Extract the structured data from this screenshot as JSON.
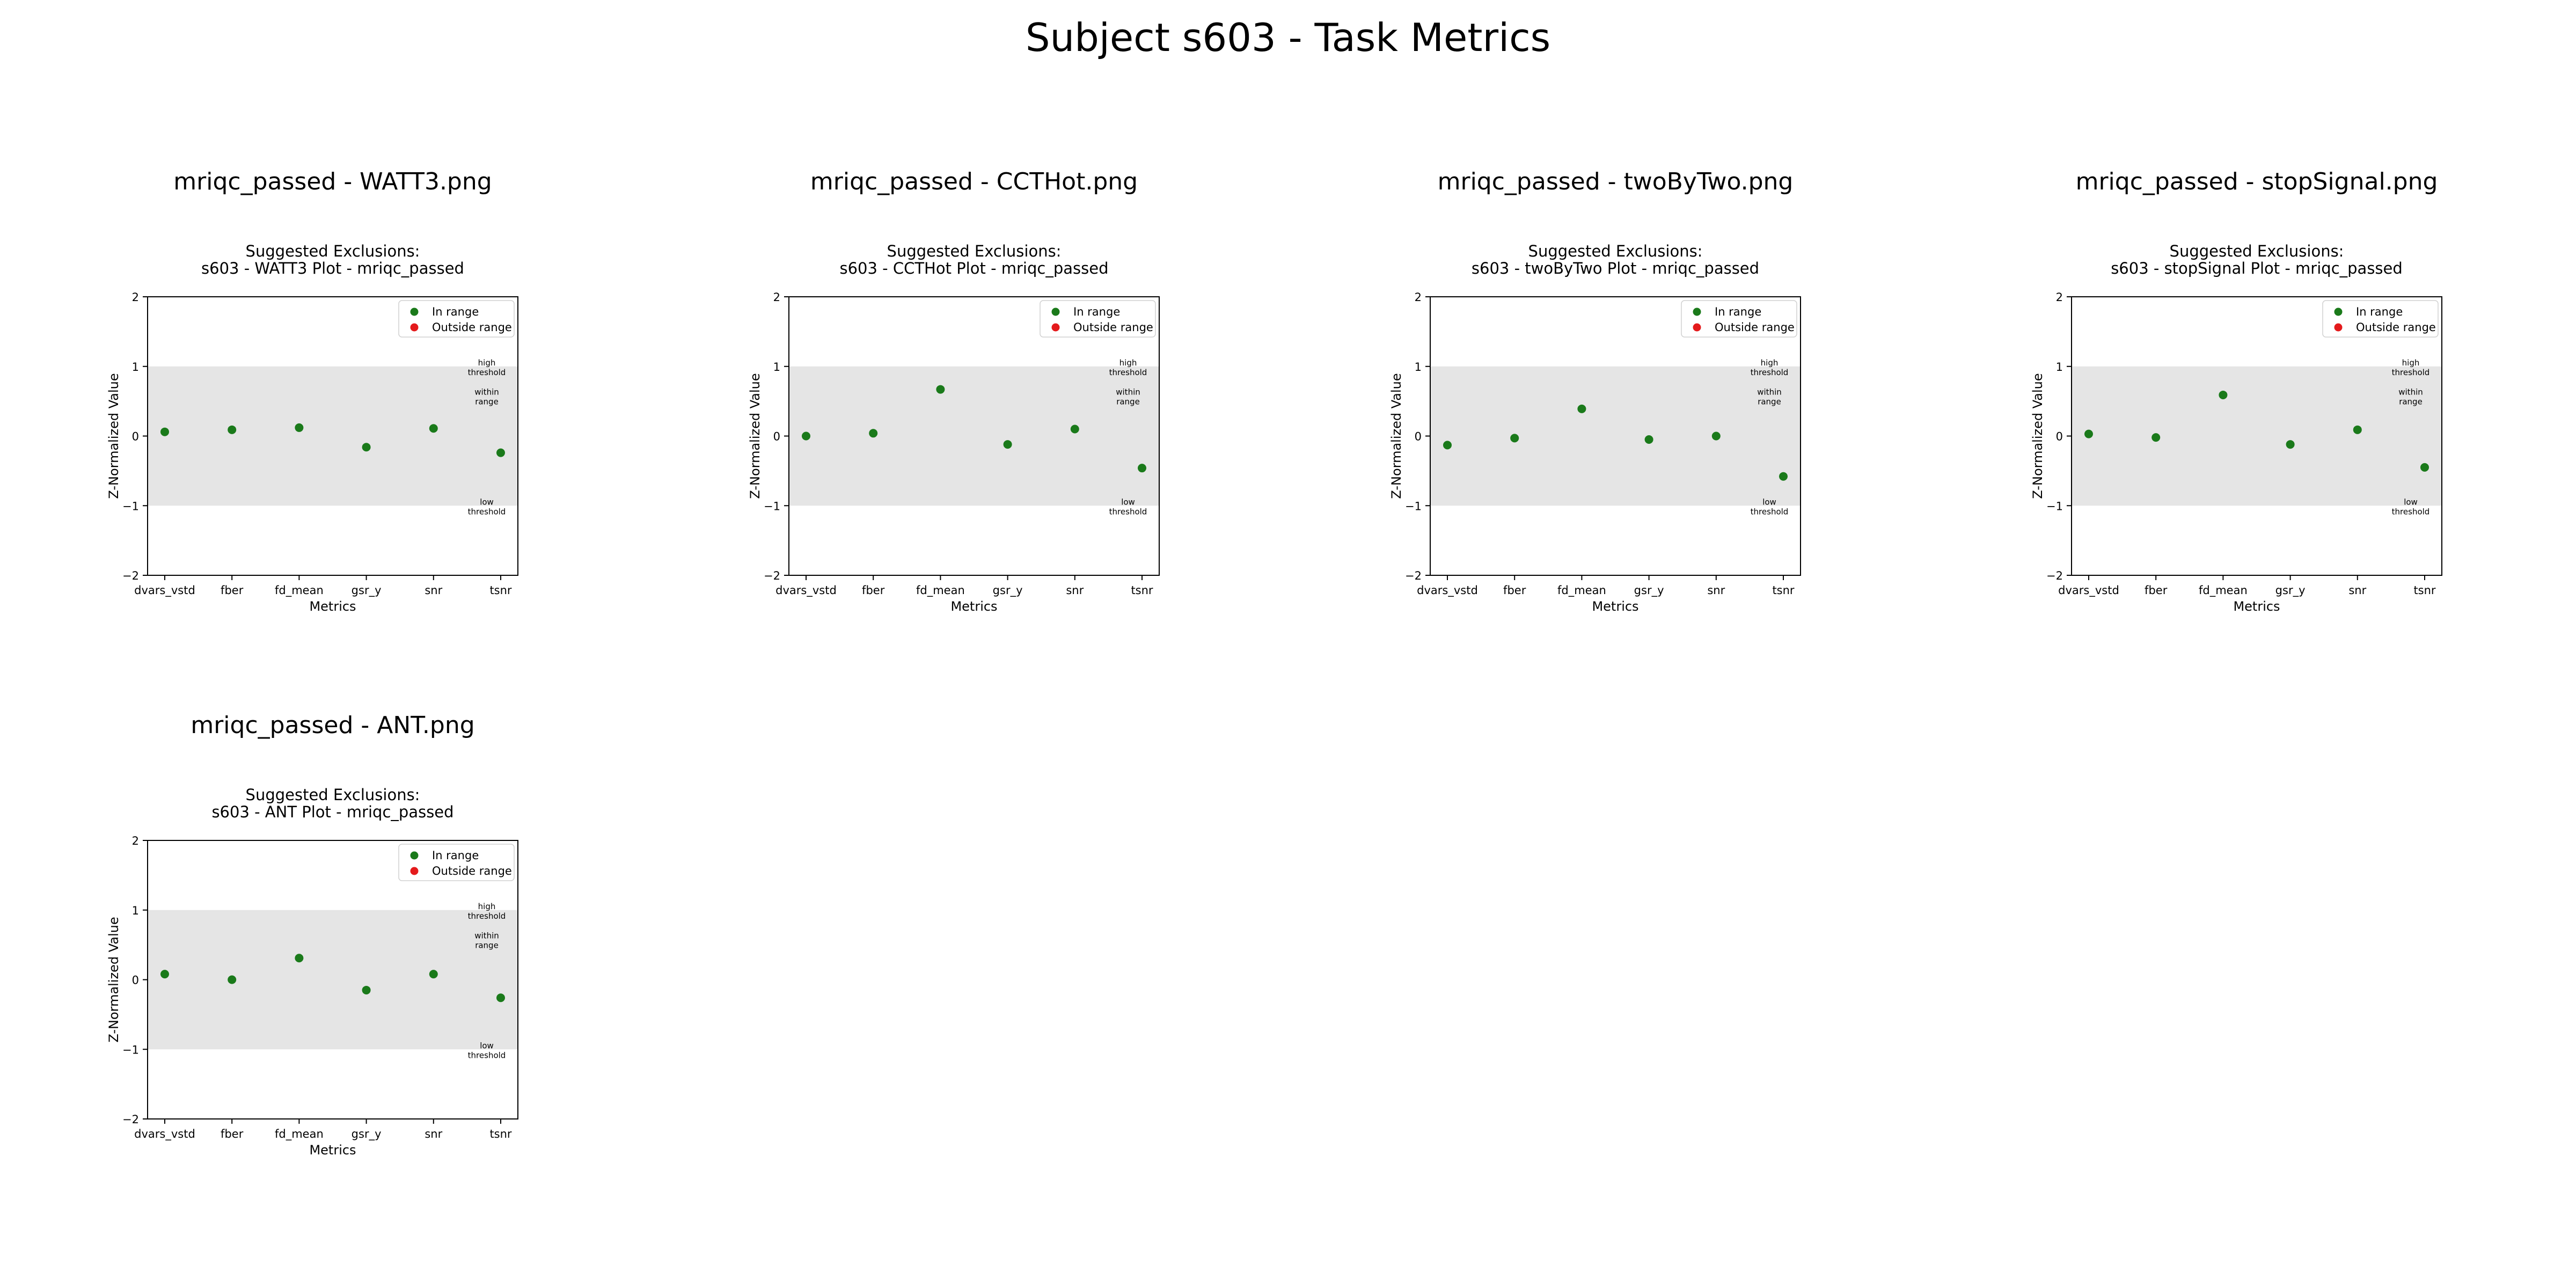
{
  "suptitle": "Subject s603 - Task Metrics",
  "colors": {
    "in_range": "#1a7a1a",
    "outside_range": "#e41a1c",
    "band": "#e5e5e5",
    "axis": "#000000"
  },
  "chart_data": [
    {
      "type": "scatter",
      "header": "mriqc_passed - WATT3.png",
      "title_line1": "Suggested Exclusions:",
      "title_line2": "s603 - WATT3 Plot - mriqc_passed",
      "xlabel": "Metrics",
      "ylabel": "Z-Normalized Value",
      "categories": [
        "dvars_vstd",
        "fber",
        "fd_mean",
        "gsr_y",
        "snr",
        "tsnr"
      ],
      "values": [
        0.06,
        0.09,
        0.12,
        -0.16,
        0.11,
        -0.24
      ],
      "ylim": [
        -2,
        2
      ],
      "yticks": [
        "−2",
        "−1",
        "0",
        "1",
        "2"
      ],
      "band": [
        -1,
        1
      ],
      "legend": [
        "In range",
        "Outside range"
      ],
      "legend_position": "top-right",
      "annotations": {
        "high": [
          "high",
          "threshold"
        ],
        "within": [
          "within",
          "range"
        ],
        "low": [
          "low",
          "threshold"
        ]
      },
      "grid": false
    },
    {
      "type": "scatter",
      "header": "mriqc_passed - CCTHot.png",
      "title_line1": "Suggested Exclusions:",
      "title_line2": "s603 - CCTHot Plot - mriqc_passed",
      "xlabel": "Metrics",
      "ylabel": "Z-Normalized Value",
      "categories": [
        "dvars_vstd",
        "fber",
        "fd_mean",
        "gsr_y",
        "snr",
        "tsnr"
      ],
      "values": [
        0.0,
        0.04,
        0.67,
        -0.12,
        0.1,
        -0.46
      ],
      "ylim": [
        -2,
        2
      ],
      "yticks": [
        "−2",
        "−1",
        "0",
        "1",
        "2"
      ],
      "band": [
        -1,
        1
      ],
      "legend": [
        "In range",
        "Outside range"
      ],
      "legend_position": "top-right",
      "annotations": {
        "high": [
          "high",
          "threshold"
        ],
        "within": [
          "within",
          "range"
        ],
        "low": [
          "low",
          "threshold"
        ]
      },
      "grid": false
    },
    {
      "type": "scatter",
      "header": "mriqc_passed - twoByTwo.png",
      "title_line1": "Suggested Exclusions:",
      "title_line2": "s603 - twoByTwo Plot - mriqc_passed",
      "xlabel": "Metrics",
      "ylabel": "Z-Normalized Value",
      "categories": [
        "dvars_vstd",
        "fber",
        "fd_mean",
        "gsr_y",
        "snr",
        "tsnr"
      ],
      "values": [
        -0.13,
        -0.03,
        0.39,
        -0.05,
        0.0,
        -0.58
      ],
      "ylim": [
        -2,
        2
      ],
      "yticks": [
        "−2",
        "−1",
        "0",
        "1",
        "2"
      ],
      "band": [
        -1,
        1
      ],
      "legend": [
        "In range",
        "Outside range"
      ],
      "legend_position": "top-right",
      "annotations": {
        "high": [
          "high",
          "threshold"
        ],
        "within": [
          "within",
          "range"
        ],
        "low": [
          "low",
          "threshold"
        ]
      },
      "grid": false
    },
    {
      "type": "scatter",
      "header": "mriqc_passed - stopSignal.png",
      "title_line1": "Suggested Exclusions:",
      "title_line2": "s603 - stopSignal Plot - mriqc_passed",
      "xlabel": "Metrics",
      "ylabel": "Z-Normalized Value",
      "categories": [
        "dvars_vstd",
        "fber",
        "fd_mean",
        "gsr_y",
        "snr",
        "tsnr"
      ],
      "values": [
        0.03,
        -0.02,
        0.59,
        -0.12,
        0.09,
        -0.45
      ],
      "ylim": [
        -2,
        2
      ],
      "yticks": [
        "−2",
        "−1",
        "0",
        "1",
        "2"
      ],
      "band": [
        -1,
        1
      ],
      "legend": [
        "In range",
        "Outside range"
      ],
      "legend_position": "top-right",
      "annotations": {
        "high": [
          "high",
          "threshold"
        ],
        "within": [
          "within",
          "range"
        ],
        "low": [
          "low",
          "threshold"
        ]
      },
      "grid": false
    },
    {
      "type": "scatter",
      "header": "mriqc_passed - ANT.png",
      "title_line1": "Suggested Exclusions:",
      "title_line2": "s603 - ANT Plot - mriqc_passed",
      "xlabel": "Metrics",
      "ylabel": "Z-Normalized Value",
      "categories": [
        "dvars_vstd",
        "fber",
        "fd_mean",
        "gsr_y",
        "snr",
        "tsnr"
      ],
      "values": [
        0.08,
        0.0,
        0.31,
        -0.15,
        0.08,
        -0.26
      ],
      "ylim": [
        -2,
        2
      ],
      "yticks": [
        "−2",
        "−1",
        "0",
        "1",
        "2"
      ],
      "band": [
        -1,
        1
      ],
      "legend": [
        "In range",
        "Outside range"
      ],
      "legend_position": "top-right",
      "annotations": {
        "high": [
          "high",
          "threshold"
        ],
        "within": [
          "within",
          "range"
        ],
        "low": [
          "low",
          "threshold"
        ]
      },
      "grid": false
    }
  ]
}
